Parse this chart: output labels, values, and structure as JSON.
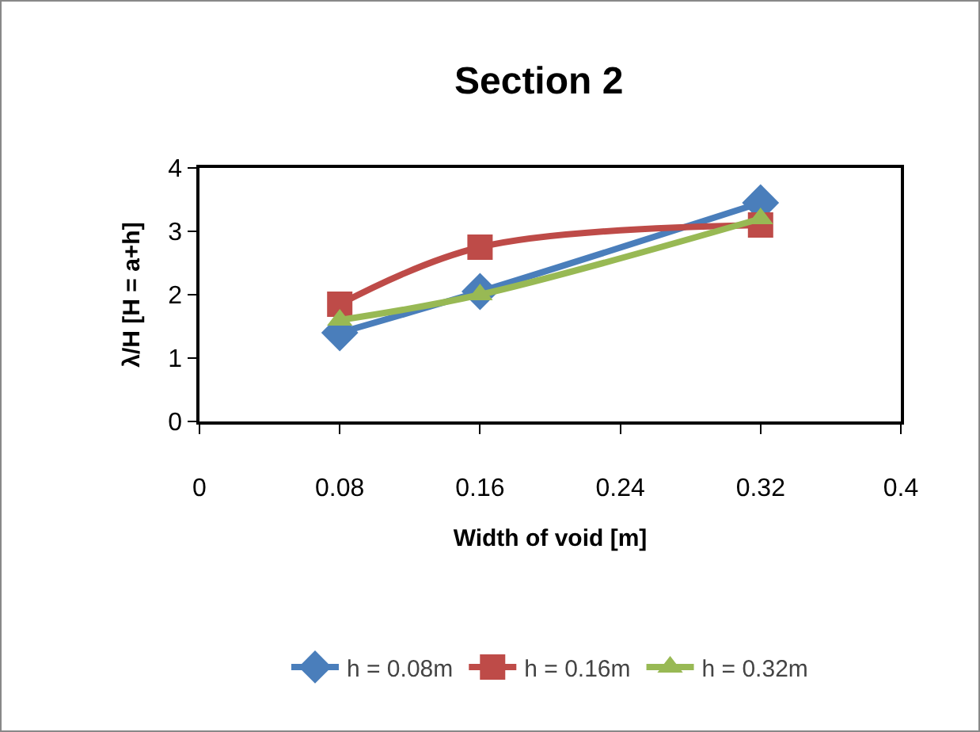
{
  "chart_data": {
    "type": "line",
    "title": "Section 2",
    "xlabel": "Width of void [m]",
    "ylabel": "λ/H [H = a+h]",
    "x": [
      0.08,
      0.16,
      0.32
    ],
    "series": [
      {
        "name": "h = 0.08m",
        "color": "#4a7ebb",
        "values": [
          1.4,
          2.05,
          3.45
        ],
        "marker": "diamond"
      },
      {
        "name": "h = 0.16m",
        "color": "#be4b48",
        "values": [
          1.85,
          2.75,
          3.1
        ],
        "marker": "square"
      },
      {
        "name": "h = 0.32m",
        "color": "#98b954",
        "values": [
          1.6,
          2.0,
          3.2
        ],
        "marker": "triangle"
      }
    ],
    "xlim": [
      0,
      0.4
    ],
    "xticks": [
      0,
      0.08,
      0.16,
      0.24,
      0.32,
      0.4
    ],
    "ylim": [
      0,
      4
    ],
    "yticks": [
      0,
      1,
      2,
      3,
      4
    ],
    "grid": false,
    "legend": "bottom",
    "line_style": "solid"
  }
}
